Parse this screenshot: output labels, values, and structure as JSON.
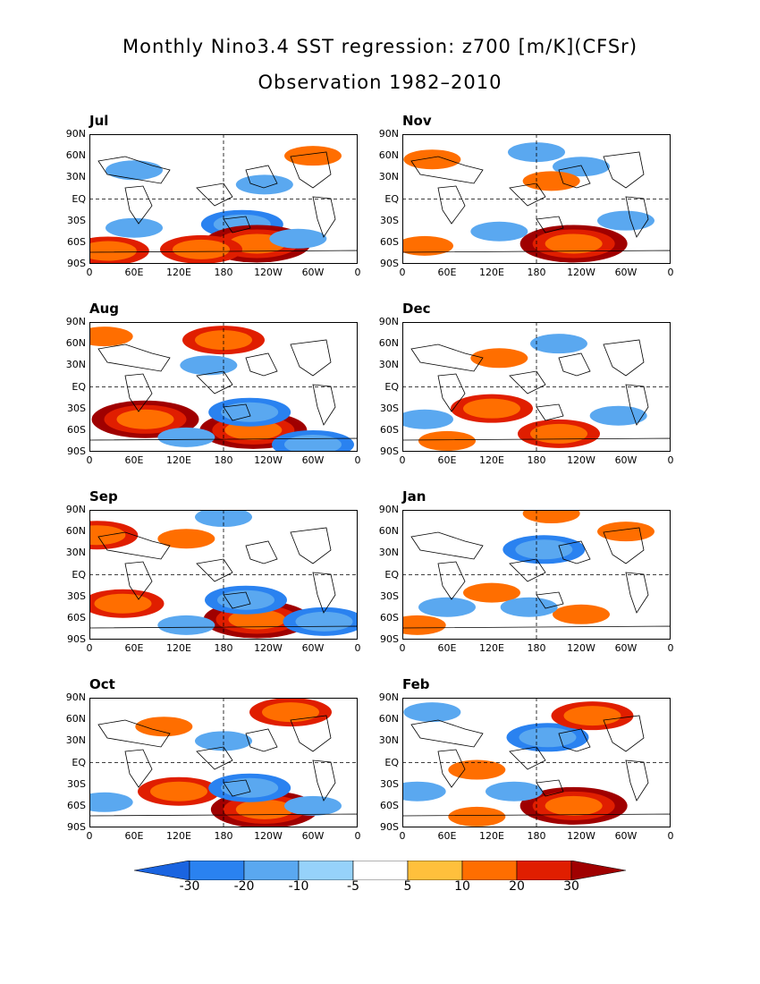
{
  "title": "Monthly Nino3.4 SST regression: z700 [m/K](CFSr)",
  "subtitle": "Observation 1982–2010",
  "lat_labels": [
    "90N",
    "60N",
    "30N",
    "EQ",
    "30S",
    "60S",
    "90S"
  ],
  "lon_labels": [
    "0",
    "60E",
    "120E",
    "180",
    "120W",
    "60W",
    "0"
  ],
  "panels": [
    {
      "label": "Jul",
      "pattern": [
        {
          "lat": 20,
          "lon": 235,
          "v": -1
        },
        {
          "lat": -35,
          "lon": 205,
          "v": -2
        },
        {
          "lat": -40,
          "lon": 60,
          "v": -1
        },
        {
          "lat": -62,
          "lon": 225,
          "v": 3
        },
        {
          "lat": -70,
          "lon": 150,
          "v": 2
        },
        {
          "lat": -72,
          "lon": 25,
          "v": 2
        },
        {
          "lat": 60,
          "lon": 300,
          "v": 1
        },
        {
          "lat": 40,
          "lon": 60,
          "v": -1
        },
        {
          "lat": -55,
          "lon": 280,
          "v": -1
        }
      ]
    },
    {
      "label": "Nov",
      "pattern": [
        {
          "lat": 65,
          "lon": 180,
          "v": -1
        },
        {
          "lat": 45,
          "lon": 240,
          "v": -1
        },
        {
          "lat": -45,
          "lon": 130,
          "v": -1
        },
        {
          "lat": -62,
          "lon": 230,
          "v": 3
        },
        {
          "lat": -65,
          "lon": 30,
          "v": 1
        },
        {
          "lat": 55,
          "lon": 40,
          "v": 1
        },
        {
          "lat": -30,
          "lon": 300,
          "v": -1
        },
        {
          "lat": 25,
          "lon": 200,
          "v": 1
        }
      ]
    },
    {
      "label": "Aug",
      "pattern": [
        {
          "lat": -45,
          "lon": 75,
          "v": 3
        },
        {
          "lat": -60,
          "lon": 220,
          "v": 3
        },
        {
          "lat": -35,
          "lon": 215,
          "v": -2
        },
        {
          "lat": -70,
          "lon": 130,
          "v": -1
        },
        {
          "lat": 65,
          "lon": 180,
          "v": 2
        },
        {
          "lat": 30,
          "lon": 160,
          "v": -1
        },
        {
          "lat": -80,
          "lon": 300,
          "v": -2
        },
        {
          "lat": 70,
          "lon": 20,
          "v": 1
        }
      ]
    },
    {
      "label": "Dec",
      "pattern": [
        {
          "lat": 60,
          "lon": 210,
          "v": -1
        },
        {
          "lat": -30,
          "lon": 120,
          "v": 2
        },
        {
          "lat": -65,
          "lon": 210,
          "v": 2
        },
        {
          "lat": -45,
          "lon": 30,
          "v": -1
        },
        {
          "lat": -40,
          "lon": 290,
          "v": -1
        },
        {
          "lat": 40,
          "lon": 130,
          "v": 1
        },
        {
          "lat": -75,
          "lon": 60,
          "v": 1
        }
      ]
    },
    {
      "label": "Sep",
      "pattern": [
        {
          "lat": -62,
          "lon": 225,
          "v": 3
        },
        {
          "lat": -40,
          "lon": 45,
          "v": 2
        },
        {
          "lat": -35,
          "lon": 210,
          "v": -2
        },
        {
          "lat": -65,
          "lon": 315,
          "v": -2
        },
        {
          "lat": 80,
          "lon": 180,
          "v": -1
        },
        {
          "lat": 50,
          "lon": 130,
          "v": 1
        },
        {
          "lat": 55,
          "lon": 10,
          "v": 2
        },
        {
          "lat": -70,
          "lon": 130,
          "v": -1
        }
      ]
    },
    {
      "label": "Jan",
      "pattern": [
        {
          "lat": 35,
          "lon": 190,
          "v": -2
        },
        {
          "lat": -25,
          "lon": 120,
          "v": 1
        },
        {
          "lat": -55,
          "lon": 240,
          "v": 1
        },
        {
          "lat": -45,
          "lon": 60,
          "v": -1
        },
        {
          "lat": 85,
          "lon": 200,
          "v": 1
        },
        {
          "lat": 60,
          "lon": 300,
          "v": 1
        },
        {
          "lat": -70,
          "lon": 20,
          "v": 1
        },
        {
          "lat": -45,
          "lon": 170,
          "v": -1
        }
      ]
    },
    {
      "label": "Oct",
      "pattern": [
        {
          "lat": -65,
          "lon": 235,
          "v": 3
        },
        {
          "lat": -40,
          "lon": 120,
          "v": 2
        },
        {
          "lat": -35,
          "lon": 215,
          "v": -2
        },
        {
          "lat": 70,
          "lon": 270,
          "v": 2
        },
        {
          "lat": 30,
          "lon": 180,
          "v": -1
        },
        {
          "lat": 50,
          "lon": 100,
          "v": 1
        },
        {
          "lat": -60,
          "lon": 300,
          "v": -1
        },
        {
          "lat": -55,
          "lon": 20,
          "v": -1
        }
      ]
    },
    {
      "label": "Feb",
      "pattern": [
        {
          "lat": 35,
          "lon": 195,
          "v": -2
        },
        {
          "lat": 65,
          "lon": 255,
          "v": 2
        },
        {
          "lat": -60,
          "lon": 230,
          "v": 3
        },
        {
          "lat": -10,
          "lon": 100,
          "v": 1
        },
        {
          "lat": -40,
          "lon": 150,
          "v": -1
        },
        {
          "lat": 70,
          "lon": 40,
          "v": -1
        },
        {
          "lat": -40,
          "lon": 20,
          "v": -1
        },
        {
          "lat": -75,
          "lon": 100,
          "v": 1
        }
      ]
    }
  ],
  "colorbar": {
    "colors": [
      "#1a64e0",
      "#2a82f0",
      "#5aa8f0",
      "#96d2fa",
      "#ffffff",
      "#ffc03c",
      "#ff6e00",
      "#e01e00",
      "#a00000"
    ],
    "labels": [
      "-30",
      "-20",
      "-10",
      "-5",
      "5",
      "10",
      "20",
      "30"
    ]
  }
}
